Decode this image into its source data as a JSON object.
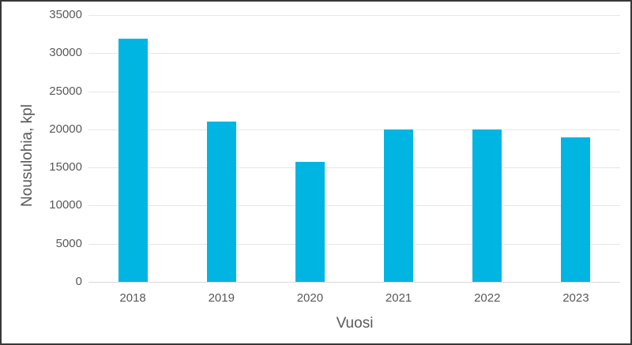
{
  "chart_data": {
    "type": "bar",
    "title": "",
    "categories": [
      "2018",
      "2019",
      "2020",
      "2021",
      "2022",
      "2023"
    ],
    "values": [
      31900,
      21000,
      15700,
      20000,
      20000,
      19000
    ],
    "xlabel": "Vuosi",
    "ylabel": "Nousulohia, kpl",
    "ylim": [
      0,
      35000
    ],
    "yticks": [
      0,
      5000,
      10000,
      15000,
      20000,
      25000,
      30000,
      35000
    ],
    "grid": "horizontal-gridlines-on",
    "legend": "none"
  },
  "colors": {
    "bar": "#00B5E2",
    "axis_text": "#595959",
    "gridline": "#E6E6E6",
    "baseline": "#D9D9D9",
    "frame_border": "#383838",
    "background": "#FFFFFF"
  }
}
